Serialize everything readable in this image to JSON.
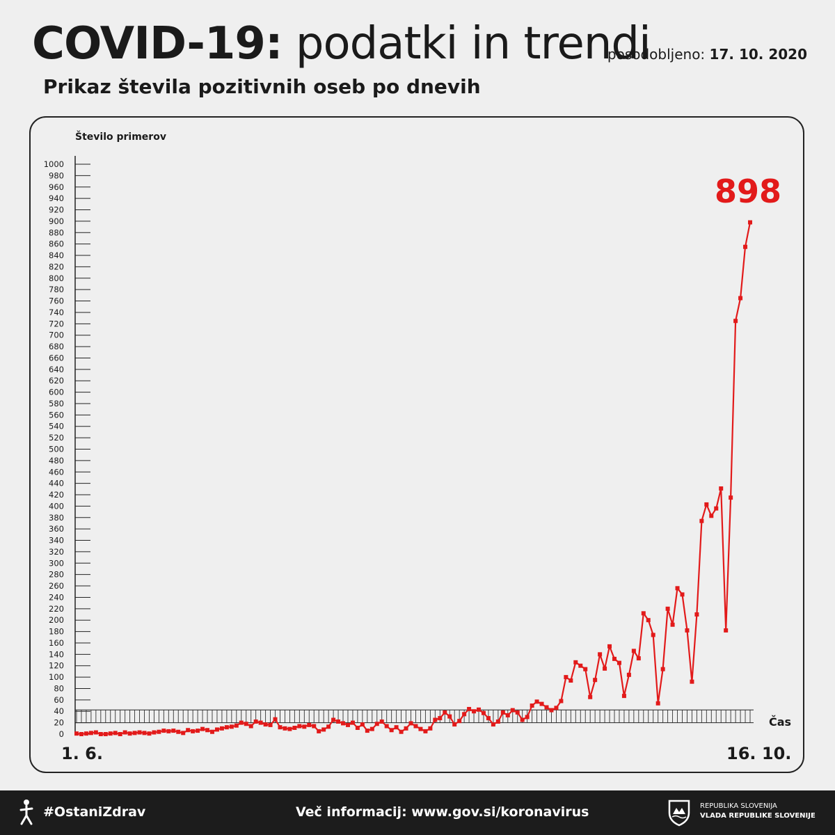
{
  "header": {
    "title_bold": "COVID-19:",
    "title_light": "podatki in trendi",
    "updated_label": "posodobljeno:",
    "updated_date": "17. 10. 2020",
    "subtitle": "Prikaz števila pozitivnih oseb po dnevih"
  },
  "colors": {
    "series": "#e21a1a",
    "text": "#1a1a1a",
    "background": "#efefef",
    "footer": "#1c1c1c"
  },
  "chart_data": {
    "type": "line",
    "title": "Prikaz števila pozitivnih oseb po dnevih",
    "ylabel": "Število primerov",
    "xlabel": "Čas",
    "x_start_label": "1. 6.",
    "x_end_label": "16. 10.",
    "ylim": [
      0,
      1000
    ],
    "yticks": [
      0,
      20,
      40,
      60,
      80,
      100,
      120,
      140,
      160,
      180,
      200,
      220,
      240,
      260,
      280,
      300,
      320,
      340,
      360,
      380,
      400,
      420,
      440,
      460,
      480,
      500,
      520,
      540,
      560,
      580,
      600,
      620,
      640,
      660,
      680,
      700,
      720,
      740,
      760,
      780,
      800,
      820,
      840,
      860,
      880,
      900,
      920,
      940,
      960,
      980,
      1000
    ],
    "highlight_value": "898",
    "series": [
      {
        "color": "#e21a1a",
        "values": [
          1,
          0,
          1,
          2,
          3,
          0,
          0,
          1,
          2,
          0,
          3,
          1,
          2,
          3,
          2,
          1,
          3,
          4,
          6,
          5,
          6,
          4,
          2,
          7,
          5,
          6,
          9,
          7,
          4,
          8,
          10,
          12,
          13,
          15,
          20,
          18,
          14,
          22,
          20,
          17,
          16,
          26,
          12,
          10,
          9,
          11,
          14,
          13,
          16,
          14,
          5,
          8,
          13,
          25,
          22,
          19,
          16,
          20,
          11,
          17,
          6,
          9,
          18,
          22,
          14,
          7,
          12,
          4,
          10,
          19,
          14,
          9,
          5,
          10,
          25,
          28,
          38,
          31,
          17,
          23,
          35,
          44,
          40,
          43,
          37,
          28,
          17,
          22,
          38,
          33,
          42,
          38,
          25,
          30,
          50,
          57,
          53,
          47,
          42,
          46,
          58,
          100,
          94,
          126,
          120,
          114,
          65,
          95,
          140,
          115,
          154,
          132,
          125,
          67,
          104,
          146,
          133,
          212,
          200,
          174,
          54,
          114,
          220,
          192,
          256,
          245,
          182,
          92,
          210,
          374,
          403,
          383,
          396,
          431,
          182,
          415,
          725,
          765,
          855,
          898
        ]
      }
    ]
  },
  "footer": {
    "hashtag": "#OstaniZdrav",
    "info": "Več informacij: www.gov.si/koronavirus",
    "gov_line1": "REPUBLIKA SLOVENIJA",
    "gov_line2": "VLADA REPUBLIKE SLOVENIJE"
  }
}
